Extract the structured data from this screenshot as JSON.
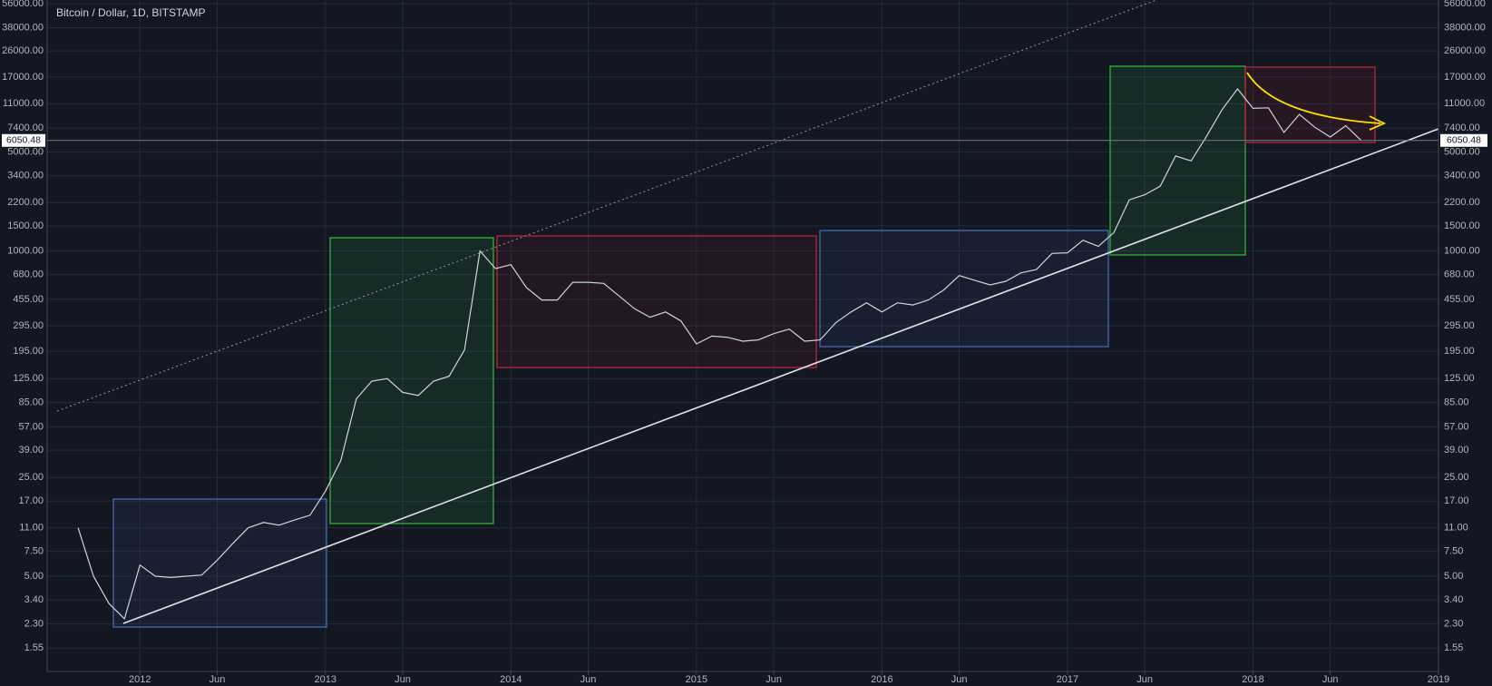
{
  "chart_data": {
    "type": "line",
    "title": "Bitcoin / Dollar, 1D, BITSTAMP",
    "log_scale": true,
    "grid": true,
    "xlim": [
      "2011-07",
      "2019-01"
    ],
    "ylim": [
      1.06,
      59600
    ],
    "xticks": [
      {
        "value": "2012-01",
        "label": "2012"
      },
      {
        "value": "2012-06",
        "label": "Jun"
      },
      {
        "value": "2013-01",
        "label": "2013"
      },
      {
        "value": "2013-06",
        "label": "Jun"
      },
      {
        "value": "2014-01",
        "label": "2014"
      },
      {
        "value": "2014-06",
        "label": "Jun"
      },
      {
        "value": "2015-01",
        "label": "2015"
      },
      {
        "value": "2015-06",
        "label": "Jun"
      },
      {
        "value": "2016-01",
        "label": "2016"
      },
      {
        "value": "2016-06",
        "label": "Jun"
      },
      {
        "value": "2017-01",
        "label": "2017"
      },
      {
        "value": "2017-06",
        "label": "Jun"
      },
      {
        "value": "2018-01",
        "label": "2018"
      },
      {
        "value": "2018-06",
        "label": "Jun"
      },
      {
        "value": "2019-01",
        "label": "2019"
      }
    ],
    "yticks": [
      {
        "value": 1.55,
        "label": "1.55"
      },
      {
        "value": 2.3,
        "label": "2.30"
      },
      {
        "value": 3.4,
        "label": "3.40"
      },
      {
        "value": 5,
        "label": "5.00"
      },
      {
        "value": 7.5,
        "label": "7.50"
      },
      {
        "value": 11,
        "label": "11.00"
      },
      {
        "value": 17,
        "label": "17.00"
      },
      {
        "value": 25,
        "label": "25.00"
      },
      {
        "value": 39,
        "label": "39.00"
      },
      {
        "value": 57,
        "label": "57.00"
      },
      {
        "value": 85,
        "label": "85.00"
      },
      {
        "value": 125,
        "label": "125.00"
      },
      {
        "value": 195,
        "label": "195.00"
      },
      {
        "value": 295,
        "label": "295.00"
      },
      {
        "value": 455,
        "label": "455.00"
      },
      {
        "value": 680,
        "label": "680.00"
      },
      {
        "value": 1000,
        "label": "1000.00"
      },
      {
        "value": 1500,
        "label": "1500.00"
      },
      {
        "value": 2200,
        "label": "2200.00"
      },
      {
        "value": 3400,
        "label": "3400.00"
      },
      {
        "value": 5000,
        "label": "5000.00"
      },
      {
        "value": 7400,
        "label": "7400.00"
      },
      {
        "value": 11000,
        "label": "11000.00"
      },
      {
        "value": 17000,
        "label": "17000.00"
      },
      {
        "value": 26000,
        "label": "26000.00"
      },
      {
        "value": 38000,
        "label": "38000.00"
      },
      {
        "value": 56000,
        "label": "56000.00"
      }
    ],
    "last_price": 6050.48,
    "color": "#d1d4dc",
    "x": [
      "2011-09",
      "2011-10",
      "2011-11",
      "2011-12",
      "2012-01",
      "2012-02",
      "2012-03",
      "2012-04",
      "2012-05",
      "2012-06",
      "2012-07",
      "2012-08",
      "2012-09",
      "2012-10",
      "2012-11",
      "2012-12",
      "2013-01",
      "2013-02",
      "2013-03",
      "2013-04",
      "2013-05",
      "2013-06",
      "2013-07",
      "2013-08",
      "2013-09",
      "2013-10",
      "2013-11",
      "2013-12",
      "2014-01",
      "2014-02",
      "2014-03",
      "2014-04",
      "2014-05",
      "2014-06",
      "2014-07",
      "2014-08",
      "2014-09",
      "2014-10",
      "2014-11",
      "2014-12",
      "2015-01",
      "2015-02",
      "2015-03",
      "2015-04",
      "2015-05",
      "2015-06",
      "2015-07",
      "2015-08",
      "2015-09",
      "2015-10",
      "2015-11",
      "2015-12",
      "2016-01",
      "2016-02",
      "2016-03",
      "2016-04",
      "2016-05",
      "2016-06",
      "2016-07",
      "2016-08",
      "2016-09",
      "2016-10",
      "2016-11",
      "2016-12",
      "2017-01",
      "2017-02",
      "2017-03",
      "2017-04",
      "2017-05",
      "2017-06",
      "2017-07",
      "2017-08",
      "2017-09",
      "2017-10",
      "2017-11",
      "2017-12",
      "2018-01",
      "2018-02",
      "2018-03",
      "2018-04",
      "2018-05",
      "2018-06",
      "2018-07",
      "2018-08"
    ],
    "values": [
      11,
      5,
      3.2,
      2.5,
      6,
      5,
      4.9,
      5,
      5.1,
      6.5,
      8.5,
      11,
      12,
      11.5,
      12.5,
      13.5,
      20,
      33,
      90,
      120,
      125,
      100,
      95,
      120,
      130,
      200,
      1000,
      750,
      800,
      550,
      450,
      450,
      600,
      600,
      590,
      480,
      390,
      340,
      370,
      320,
      220,
      250,
      245,
      230,
      235,
      260,
      280,
      230,
      235,
      310,
      370,
      430,
      370,
      430,
      415,
      450,
      530,
      670,
      620,
      575,
      610,
      700,
      740,
      960,
      970,
      1190,
      1080,
      1350,
      2300,
      2500,
      2870,
      4700,
      4340,
      6470,
      10000,
      14000,
      10200,
      10300,
      6900,
      9250,
      7500,
      6400,
      7700,
      6050
    ]
  }
}
